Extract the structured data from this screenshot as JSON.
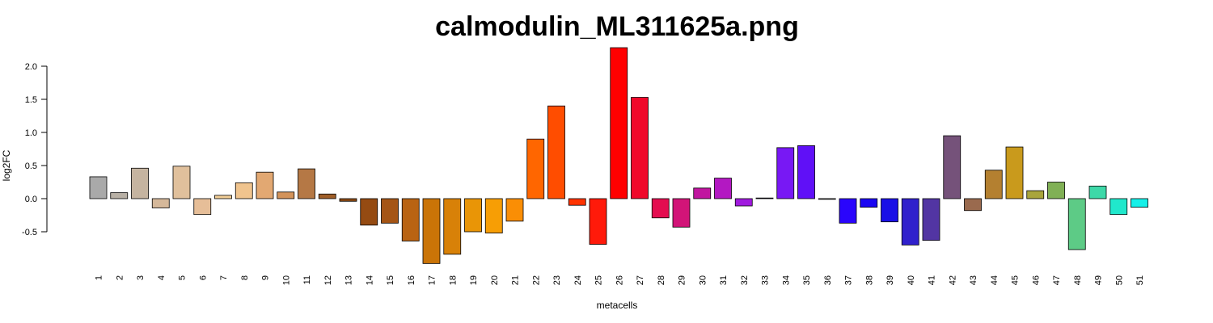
{
  "chart_data": {
    "type": "bar",
    "title": "calmodulin_ML311625a.png",
    "xlabel": "metacells",
    "ylabel": "log2FC",
    "yticks": [
      "-0.5",
      "0.0",
      "0.5",
      "1.0",
      "1.5",
      "2.0"
    ],
    "ylim": [
      -0.98,
      2.28
    ],
    "grid": false,
    "categories": [
      "1",
      "2",
      "3",
      "4",
      "5",
      "6",
      "7",
      "8",
      "9",
      "10",
      "11",
      "12",
      "13",
      "14",
      "15",
      "16",
      "17",
      "18",
      "19",
      "20",
      "21",
      "22",
      "23",
      "24",
      "25",
      "26",
      "27",
      "28",
      "29",
      "30",
      "31",
      "32",
      "33",
      "34",
      "35",
      "36",
      "37",
      "38",
      "39",
      "40",
      "41",
      "42",
      "43",
      "44",
      "45",
      "46",
      "47",
      "48",
      "49",
      "50",
      "51"
    ],
    "values": [
      0.33,
      0.09,
      0.46,
      -0.14,
      0.49,
      -0.24,
      0.05,
      0.24,
      0.4,
      0.1,
      0.45,
      0.07,
      -0.04,
      -0.4,
      -0.37,
      -0.64,
      -0.98,
      -0.84,
      -0.5,
      -0.52,
      -0.34,
      0.9,
      1.4,
      -0.1,
      -0.69,
      2.28,
      1.53,
      -0.29,
      -0.43,
      0.16,
      0.31,
      -0.11,
      0.01,
      0.77,
      0.8,
      0.0,
      -0.37,
      -0.13,
      -0.35,
      -0.7,
      -0.63,
      0.95,
      -0.18,
      0.43,
      0.78,
      0.12,
      0.25,
      -0.77,
      0.19,
      -0.24,
      -0.13
    ],
    "colors": [
      "#A9A9A9",
      "#B8B0A5",
      "#C5B4A0",
      "#D5B89A",
      "#E0C09C",
      "#E6BE98",
      "#F2CE96",
      "#F0C48E",
      "#E2A872",
      "#D3935A",
      "#B57845",
      "#9F5E28",
      "#8C4A14",
      "#954B12",
      "#A55515",
      "#B96313",
      "#CA7407",
      "#D88108",
      "#E99506",
      "#F79E05",
      "#FA8E05",
      "#FF6600",
      "#FF4D00",
      "#FF3300",
      "#FF1A0A",
      "#FF0000",
      "#F0082A",
      "#E40D50",
      "#D21478",
      "#C116A0",
      "#B318C2",
      "#A01ADE",
      "#8A1CEE",
      "#7818F4",
      "#6010F7",
      "#4808FA",
      "#2A05FC",
      "#1A05F2",
      "#1A10E6",
      "#3020CC",
      "#5235A3",
      "#75527A",
      "#9A6A4E",
      "#B48030",
      "#C99A1C",
      "#A9A53C",
      "#80B055",
      "#5DCB86",
      "#3ED8A8",
      "#20E8CC",
      "#15F0E8"
    ]
  }
}
